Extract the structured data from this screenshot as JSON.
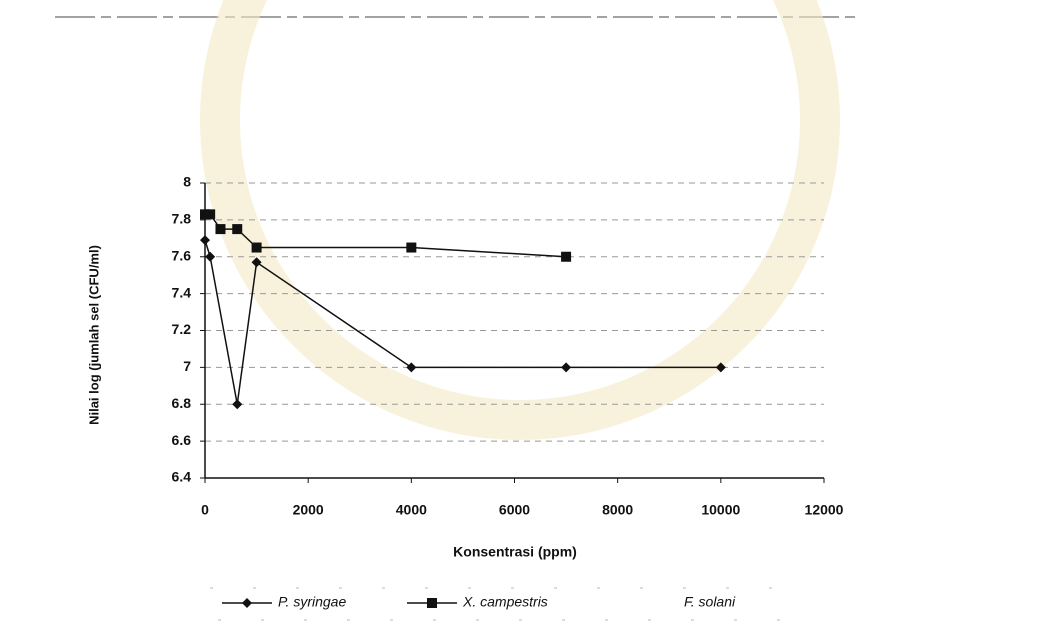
{
  "chart_data": {
    "type": "line",
    "xlabel": "Konsentrasi (ppm)",
    "ylabel": "Nilai log (jumlah sel (CFU/ml)",
    "xlim": [
      0,
      12000
    ],
    "xticks": [
      0,
      2000,
      4000,
      6000,
      8000,
      10000,
      12000
    ],
    "ylim": [
      6.4,
      8
    ],
    "yticks": [
      6.4,
      6.6,
      6.8,
      7,
      7.2,
      7.4,
      7.6,
      7.8,
      8
    ],
    "grid": true,
    "legend": "bottom",
    "series": [
      {
        "name": "P. syringae",
        "color": "#111111",
        "marker": "diamond",
        "x": [
          0,
          100,
          625,
          1000,
          4000,
          7000,
          10000
        ],
        "values": [
          7.69,
          7.6,
          6.8,
          7.57,
          7.0,
          7.0,
          7.0
        ]
      },
      {
        "name": "X. campestris",
        "color": "#111111",
        "marker": "square",
        "x": [
          0,
          100,
          300,
          625,
          1000,
          4000,
          7000
        ],
        "values": [
          7.83,
          7.83,
          7.75,
          7.75,
          7.65,
          7.65,
          7.6
        ]
      },
      {
        "name": "F. solani",
        "color": "#111111",
        "marker": "none",
        "x": [],
        "values": []
      }
    ]
  }
}
